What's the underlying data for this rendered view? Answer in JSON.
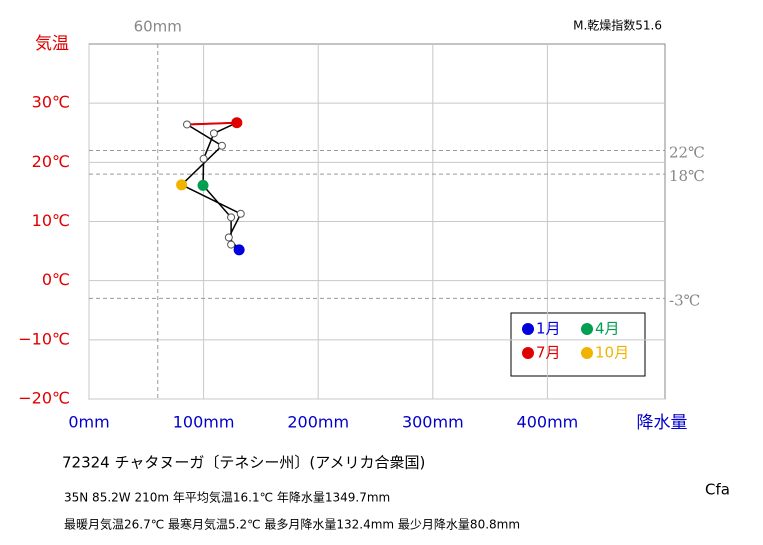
{
  "chart_data": {
    "type": "climograph",
    "y_label": "気温",
    "x_label": "降水量",
    "index_text": "M.乾燥指数51.6",
    "x": [
      131,
      124,
      124,
      99.5,
      100,
      109,
      129,
      85.5,
      116,
      80.8,
      132.4,
      122
    ],
    "values": [
      5.2,
      6.1,
      10.7,
      16.1,
      20.6,
      24.9,
      26.7,
      26.4,
      22.8,
      16.2,
      11.3,
      7.3
    ],
    "line_color": "#000000",
    "summer_line_color": "#e00000",
    "xlim": [
      0,
      500
    ],
    "ylim": [
      -20,
      40
    ],
    "xticks": [
      {
        "value": 0,
        "label": "0mm"
      },
      {
        "value": 100,
        "label": "100mm"
      },
      {
        "value": 200,
        "label": "200mm"
      },
      {
        "value": 300,
        "label": "300mm"
      },
      {
        "value": 400,
        "label": "400mm"
      }
    ],
    "yticks": [
      {
        "value": -20,
        "label": "−20℃"
      },
      {
        "value": -10,
        "label": "−10℃"
      },
      {
        "value": 0,
        "label": "0℃"
      },
      {
        "value": 10,
        "label": "10℃"
      },
      {
        "value": 20,
        "label": "20℃"
      },
      {
        "value": 30,
        "label": "30℃"
      }
    ],
    "grid": true,
    "h_refs": [
      {
        "value": 22,
        "label": "22℃"
      },
      {
        "value": 18,
        "label": "18℃"
      },
      {
        "value": -3,
        "label": "-3℃"
      }
    ],
    "v_refs": [
      {
        "value": 60,
        "label": "60mm"
      }
    ],
    "legend": [
      {
        "name": "1月",
        "color": "#0000dd"
      },
      {
        "name": "4月",
        "color": "#00a050"
      },
      {
        "name": "7月",
        "color": "#e00000"
      },
      {
        "name": "10月",
        "color": "#f0b400"
      }
    ],
    "station": "72324  チャタヌーガ〔テネシー州〕(アメリカ合衆国)",
    "info1": "35N  85.2W 210m  年平均気温16.1℃ 年降水量1349.7mm",
    "info2": "最暖月気温26.7℃ 最寒月気温5.2℃ 最多月降水量132.4mm 最少月降水量80.8mm",
    "climate": "Cfa"
  }
}
